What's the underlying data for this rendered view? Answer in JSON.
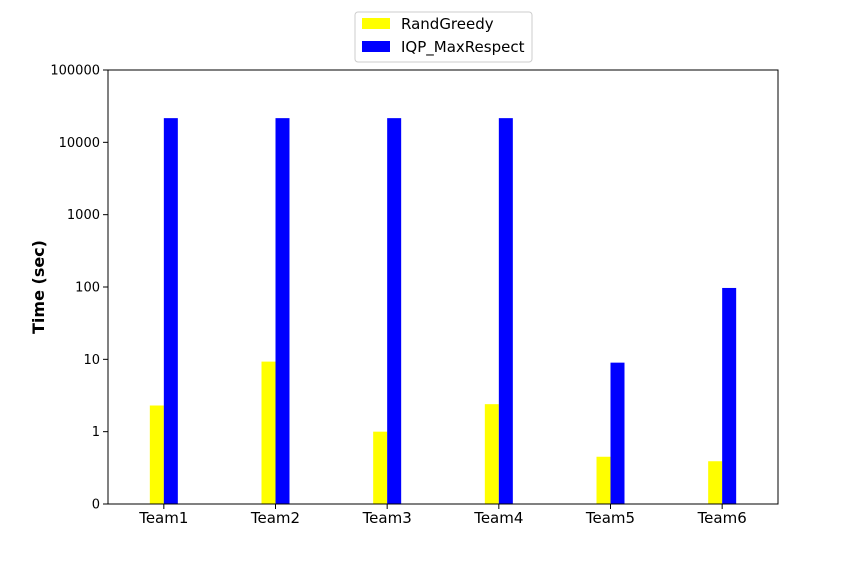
{
  "chart_data": {
    "type": "bar",
    "title": "",
    "xlabel": "",
    "ylabel": "Time (sec)",
    "y_scale": "log",
    "ylim": [
      0.1,
      100000
    ],
    "y_ticks": [
      0.1,
      1,
      10,
      100,
      1000,
      10000,
      100000
    ],
    "y_tick_labels": [
      "0",
      "1",
      "10",
      "100",
      "1000",
      "10000",
      "100000"
    ],
    "categories": [
      "Team1",
      "Team2",
      "Team3",
      "Team4",
      "Team5",
      "Team6"
    ],
    "legend_position": "top-center",
    "grid": false,
    "series": [
      {
        "name": "RandGreedy",
        "color": "#ffff00",
        "values": [
          2.3,
          9.3,
          1.0,
          2.4,
          0.45,
          0.39
        ]
      },
      {
        "name": "IQP_MaxRespect",
        "color": "#0000ff",
        "values": [
          21600,
          21600,
          21600,
          21600,
          9.0,
          97
        ]
      }
    ]
  }
}
